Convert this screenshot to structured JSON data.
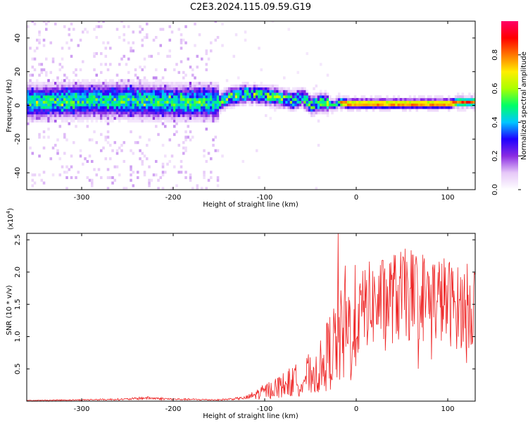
{
  "figure": {
    "title": "C2E3.2024.115.09.59.G19"
  },
  "chart_data": [
    {
      "type": "heatmap",
      "xlabel": "Height of straight line (km)",
      "ylabel": "Frequency (Hz)",
      "xlim": [
        -360,
        130
      ],
      "ylim": [
        -50,
        50
      ],
      "xticks": [
        -300,
        -200,
        -100,
        0,
        100
      ],
      "yticks": [
        -40,
        -20,
        0,
        20,
        40
      ],
      "colorbar": {
        "label": "Normalized spectral amplitude",
        "range": [
          0.0,
          1.0
        ],
        "ticks": [
          0.0,
          0.2,
          0.4,
          0.6,
          0.8
        ],
        "colormap": [
          "#ffffff",
          "#e6c8f8",
          "#8a2be2",
          "#1e00ff",
          "#00c8ff",
          "#00ff66",
          "#aaff00",
          "#ffee00",
          "#ff7700",
          "#ff0000",
          "#ff0066"
        ]
      },
      "ridge": {
        "x": [
          -360,
          -300,
          -250,
          -200,
          -160,
          -150,
          -140,
          -120,
          -100,
          -80,
          -70,
          -60,
          -50,
          -40,
          -30,
          -25,
          -20,
          -10,
          0,
          20,
          50,
          80,
          100,
          110,
          130
        ],
        "frequency": [
          2,
          3,
          3,
          2,
          2,
          2,
          5,
          7,
          6,
          4,
          3,
          5,
          0,
          2,
          1,
          0,
          2,
          1,
          1,
          1,
          1,
          1,
          1,
          2,
          2
        ]
      },
      "grid": false
    },
    {
      "type": "line",
      "xlabel": "Height of straight line (km)",
      "ylabel": "SNR (10 * v/v)",
      "multiplier_label": "(x10",
      "multiplier_exp": "4",
      "multiplier_close": ")",
      "xlim": [
        -360,
        130
      ],
      "ylim": [
        0,
        2.6
      ],
      "xticks": [
        -300,
        -200,
        -100,
        0,
        100
      ],
      "yticks": [
        0.5,
        1.0,
        1.5,
        2.0,
        2.5
      ],
      "ytick_labels": [
        "0.5",
        "1.0",
        "1.5",
        "2.0",
        "2.5"
      ],
      "color": "#ee2222",
      "series": [
        {
          "x": [
            -360,
            -300,
            -250,
            -230,
            -200,
            -150,
            -120,
            -100,
            -80,
            -60,
            -40,
            -30,
            -20,
            -10,
            0,
            10,
            20,
            40,
            60,
            80,
            100,
            110,
            130
          ],
          "values": [
            0.01,
            0.02,
            0.03,
            0.05,
            0.03,
            0.02,
            0.05,
            0.15,
            0.25,
            0.35,
            0.5,
            0.75,
            0.95,
            1.05,
            1.2,
            1.5,
            1.5,
            1.6,
            1.65,
            1.6,
            1.55,
            1.45,
            1.5
          ]
        }
      ],
      "spikes": [
        {
          "x": -20,
          "value": 2.6
        },
        {
          "x": -12,
          "value": 2.1
        }
      ],
      "grid": false
    }
  ]
}
